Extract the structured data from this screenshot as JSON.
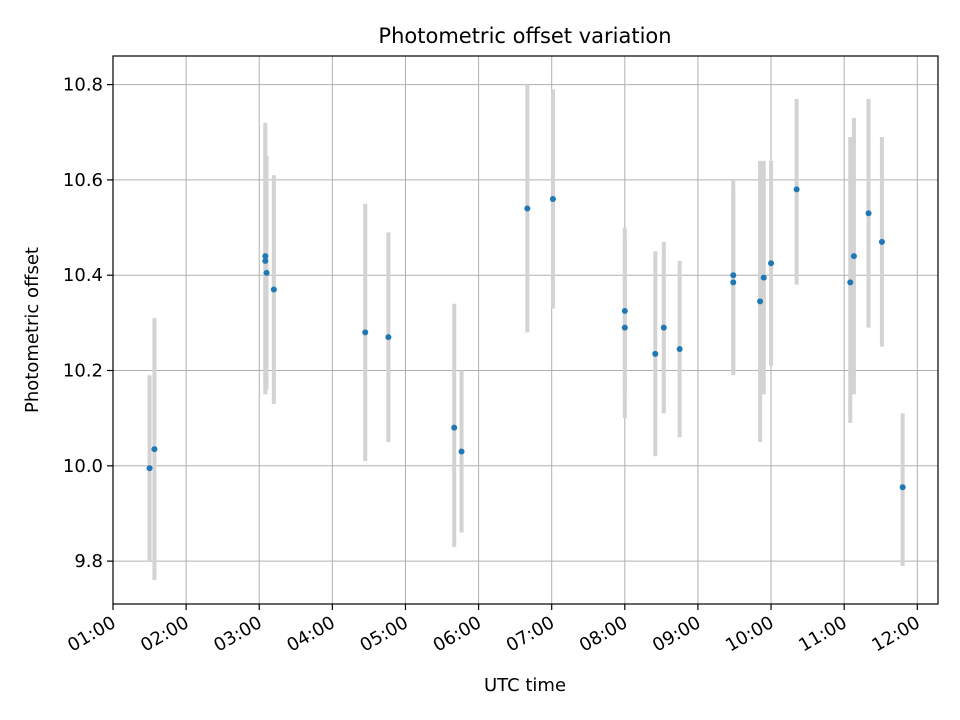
{
  "chart_data": {
    "type": "scatter",
    "title": "Photometric offset variation",
    "xlabel": "UTC time",
    "ylabel": "Photometric offset",
    "x_tick_labels": [
      "01:00",
      "02:00",
      "03:00",
      "04:00",
      "05:00",
      "06:00",
      "07:00",
      "08:00",
      "09:00",
      "10:00",
      "11:00",
      "12:00"
    ],
    "y_tick_labels": [
      "9.8",
      "10.0",
      "10.2",
      "10.4",
      "10.6",
      "10.8"
    ],
    "x_ticks": [
      "01:00",
      "02:00",
      "03:00",
      "04:00",
      "05:00",
      "06:00",
      "07:00",
      "08:00",
      "09:00",
      "10:00",
      "11:00",
      "12:00"
    ],
    "y_ticks": [
      9.8,
      10.0,
      10.2,
      10.4,
      10.6,
      10.8
    ],
    "xlim": [
      "01:00",
      "12:17"
    ],
    "ylim": [
      9.71,
      10.86
    ],
    "grid": true,
    "point_color": "#1f77b4",
    "errorbar_color": "#d3d3d3",
    "points": [
      {
        "x": "01:30",
        "y": 9.995,
        "err_low": 9.8,
        "err_high": 10.19
      },
      {
        "x": "01:34",
        "y": 10.035,
        "err_low": 9.76,
        "err_high": 10.31
      },
      {
        "x": "03:05",
        "y": 10.44,
        "err_low": 10.15,
        "err_high": 10.72
      },
      {
        "x": "03:05",
        "y": 10.43,
        "err_low": 10.16,
        "err_high": 10.71
      },
      {
        "x": "03:06",
        "y": 10.405,
        "err_low": 10.16,
        "err_high": 10.65
      },
      {
        "x": "03:12",
        "y": 10.37,
        "err_low": 10.13,
        "err_high": 10.61
      },
      {
        "x": "04:27",
        "y": 10.28,
        "err_low": 10.01,
        "err_high": 10.55
      },
      {
        "x": "04:46",
        "y": 10.27,
        "err_low": 10.05,
        "err_high": 10.49
      },
      {
        "x": "05:40",
        "y": 10.08,
        "err_low": 9.83,
        "err_high": 10.34
      },
      {
        "x": "05:46",
        "y": 10.03,
        "err_low": 9.86,
        "err_high": 10.2
      },
      {
        "x": "06:40",
        "y": 10.54,
        "err_low": 10.28,
        "err_high": 10.8
      },
      {
        "x": "07:01",
        "y": 10.56,
        "err_low": 10.33,
        "err_high": 10.79
      },
      {
        "x": "08:00",
        "y": 10.325,
        "err_low": 10.15,
        "err_high": 10.5
      },
      {
        "x": "08:00",
        "y": 10.29,
        "err_low": 10.1,
        "err_high": 10.48
      },
      {
        "x": "08:25",
        "y": 10.235,
        "err_low": 10.02,
        "err_high": 10.45
      },
      {
        "x": "08:32",
        "y": 10.29,
        "err_low": 10.11,
        "err_high": 10.47
      },
      {
        "x": "08:45",
        "y": 10.245,
        "err_low": 10.06,
        "err_high": 10.43
      },
      {
        "x": "09:29",
        "y": 10.4,
        "err_low": 10.2,
        "err_high": 10.6
      },
      {
        "x": "09:29",
        "y": 10.385,
        "err_low": 10.19,
        "err_high": 10.58
      },
      {
        "x": "09:51",
        "y": 10.345,
        "err_low": 10.05,
        "err_high": 10.64
      },
      {
        "x": "09:54",
        "y": 10.395,
        "err_low": 10.15,
        "err_high": 10.64
      },
      {
        "x": "10:00",
        "y": 10.425,
        "err_low": 10.21,
        "err_high": 10.64
      },
      {
        "x": "10:21",
        "y": 10.58,
        "err_low": 10.38,
        "err_high": 10.77
      },
      {
        "x": "11:05",
        "y": 10.385,
        "err_low": 10.09,
        "err_high": 10.69
      },
      {
        "x": "11:08",
        "y": 10.44,
        "err_low": 10.15,
        "err_high": 10.73
      },
      {
        "x": "11:20",
        "y": 10.53,
        "err_low": 10.29,
        "err_high": 10.77
      },
      {
        "x": "11:31",
        "y": 10.47,
        "err_low": 10.25,
        "err_high": 10.69
      },
      {
        "x": "11:48",
        "y": 9.955,
        "err_low": 9.79,
        "err_high": 10.11
      }
    ]
  }
}
